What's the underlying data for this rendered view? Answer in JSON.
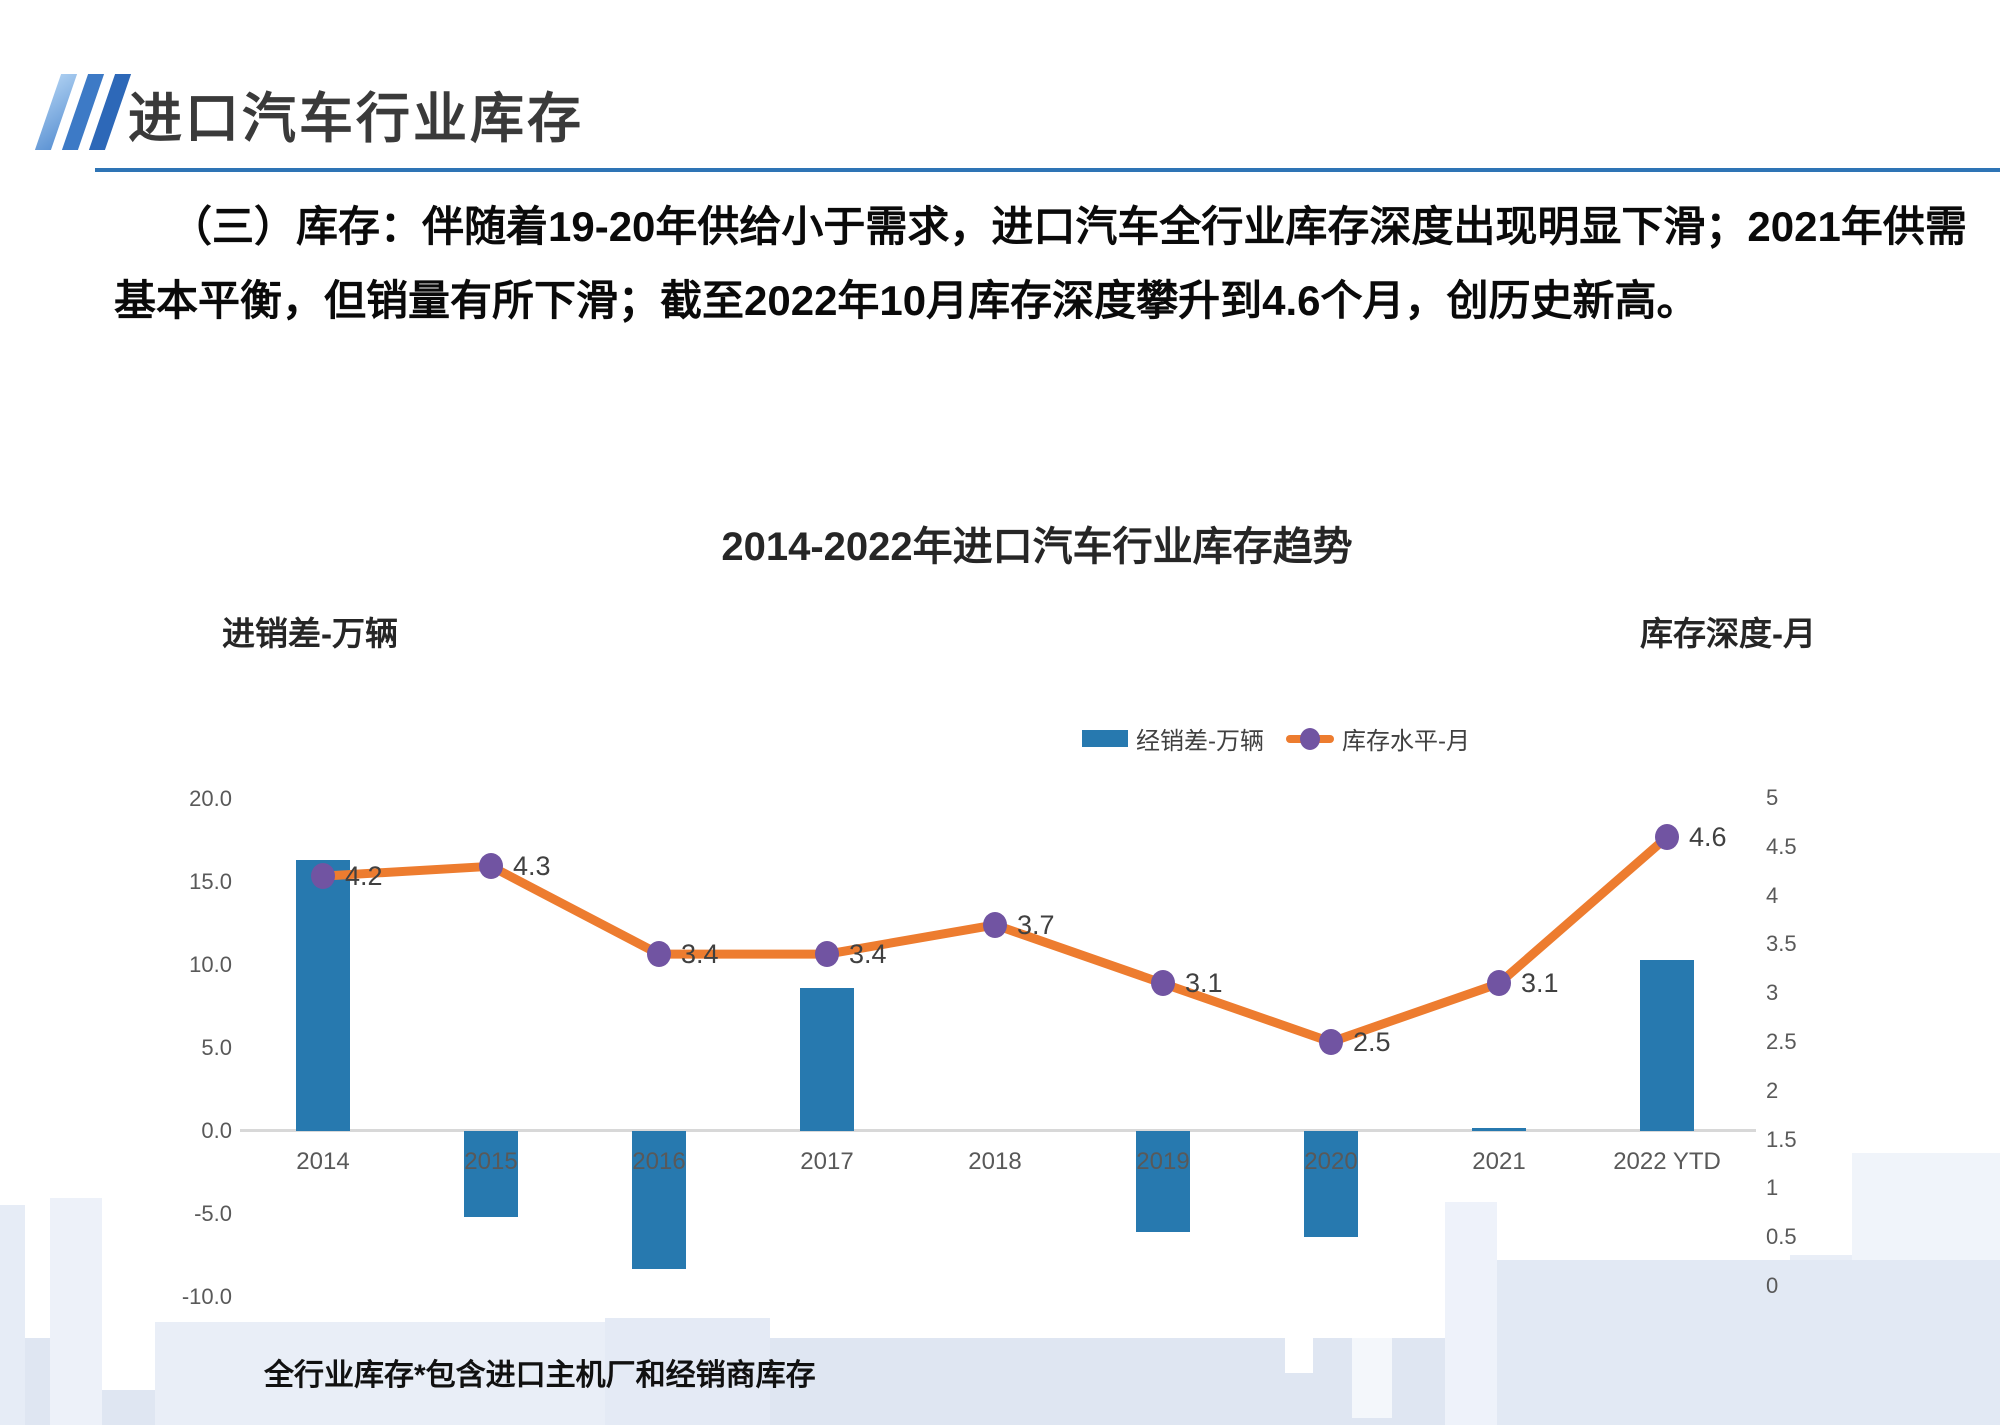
{
  "slide": {
    "header": {
      "title": "进口汽车行业库存"
    },
    "body": {
      "line1": "（三）库存：伴随着19-20年供给小于需求，进口汽车全行业库存深度出现明显下滑；2021年供需",
      "line2": "基本平衡，但销量有所下滑；截至2022年10月库存深度攀升到4.6个月，创历史新高。"
    },
    "footnote": "全行业库存*包含进口主机厂和经销商库存"
  },
  "chart_data": {
    "type": "bar",
    "subtype": "combo-bar-line-dual-axis",
    "title": "2014-2022年进口汽车行业库存趋势",
    "categories": [
      "2014",
      "2015",
      "2016",
      "2017",
      "2018",
      "2019",
      "2020",
      "2021",
      "2022 YTD"
    ],
    "series": [
      {
        "name": "经销差-万辆",
        "type": "bar",
        "axis": "left",
        "values": [
          16.3,
          -5.2,
          -8.3,
          8.6,
          0,
          -6.1,
          -6.4,
          0.2,
          10.3
        ],
        "color": "#2779AF"
      },
      {
        "name": "库存水平-月",
        "type": "line",
        "axis": "right",
        "values": [
          4.2,
          4.3,
          3.4,
          3.4,
          3.7,
          3.1,
          2.5,
          3.1,
          4.6
        ],
        "data_labels": [
          "4.2",
          "4.3",
          "3.4",
          "3.4",
          "3.7",
          "3.1",
          "2.5",
          "3.1",
          "4.6"
        ],
        "line_color": "#ED7C2F",
        "marker_color": "#7154A2"
      }
    ],
    "left_axis": {
      "label": "进销差-万辆",
      "min": -10,
      "max": 20,
      "ticks": [
        "20.0",
        "15.0",
        "10.0",
        "5.0",
        "0.0",
        "-5.0",
        "-10.0"
      ],
      "tick_values": [
        20,
        15,
        10,
        5,
        0,
        -5,
        -10
      ]
    },
    "right_axis": {
      "label": "库存深度-月",
      "min": 0,
      "max": 5,
      "ticks": [
        "5",
        "4.5",
        "4",
        "3.5",
        "3",
        "2.5",
        "2",
        "1.5",
        "1",
        "0.5",
        "0"
      ],
      "tick_values": [
        5,
        4.5,
        4,
        3.5,
        3,
        2.5,
        2,
        1.5,
        1,
        0.5,
        0
      ]
    },
    "legend_position": "top-right",
    "grid": "off",
    "colors": {
      "bar": "#2779AF",
      "line": "#ED7C2F",
      "marker": "#7154A2",
      "axis_line": "#D8D8D8",
      "tick_text": "#595959",
      "accent_divider": "#2E74B5"
    }
  }
}
